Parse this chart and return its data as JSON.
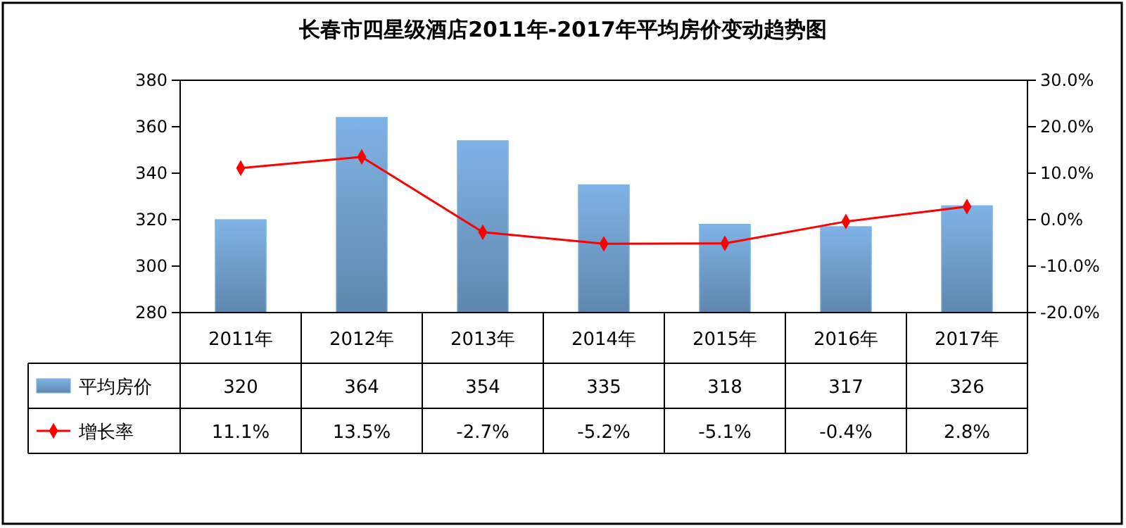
{
  "chart_data": {
    "type": "bar",
    "title": "长春市四星级酒店2011年-2017年平均房价变动趋势图",
    "categories": [
      "2011年",
      "2012年",
      "2013年",
      "2014年",
      "2015年",
      "2016年",
      "2017年"
    ],
    "series": [
      {
        "name": "平均房价",
        "color": "#7fb3e6",
        "values": [
          320,
          364,
          354,
          335,
          318,
          317,
          326
        ],
        "value_labels": [
          "320",
          "364",
          "354",
          "335",
          "318",
          "317",
          "326"
        ]
      },
      {
        "name": "增长率",
        "type": "line",
        "axis": "y2",
        "color": "#ff0000",
        "marker": "diamond",
        "values": [
          11.1,
          13.5,
          -2.7,
          -5.2,
          -5.1,
          -0.4,
          2.8
        ],
        "value_labels": [
          "11.1%",
          "13.5%",
          "-2.7%",
          "-5.2%",
          "-5.1%",
          "-0.4%",
          "2.8%"
        ]
      }
    ],
    "ylim": [
      280,
      380
    ],
    "yticks": [
      280,
      300,
      320,
      340,
      360,
      380
    ],
    "y2lim": [
      -20,
      30
    ],
    "y2ticks": [
      {
        "value": -20,
        "label": "-20.0%"
      },
      {
        "value": -10,
        "label": "-10.0%"
      },
      {
        "value": 0,
        "label": "0.0%"
      },
      {
        "value": 10,
        "label": "10.0%"
      },
      {
        "value": 20,
        "label": "20.0%"
      },
      {
        "value": 30,
        "label": "30.0%"
      }
    ],
    "legend": "bottom"
  }
}
